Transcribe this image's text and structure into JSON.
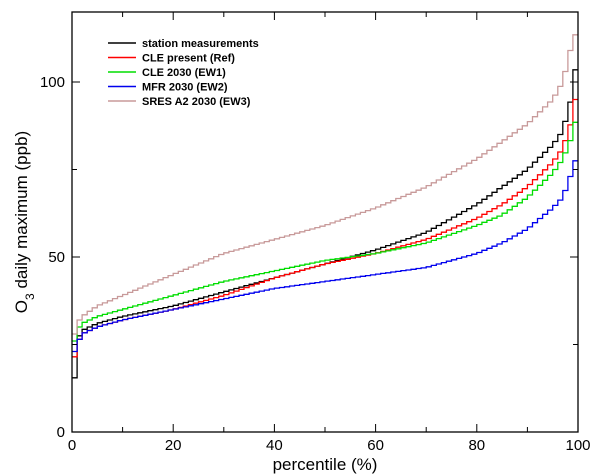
{
  "chart_data": {
    "type": "line",
    "title": "",
    "xlabel": "percentile (%)",
    "ylabel_main": "O",
    "ylabel_sub": "3",
    "ylabel_rest": " daily maximum (ppb)",
    "xlim": [
      0,
      100
    ],
    "ylim": [
      0,
      120
    ],
    "xticks": [
      0,
      20,
      40,
      60,
      80,
      100
    ],
    "yticks": [
      0,
      50,
      100
    ],
    "grid": false,
    "legend_position": "top-left",
    "step": true,
    "series": [
      {
        "name": "station measurements",
        "color": "#000000",
        "x": [
          0,
          1,
          2,
          5,
          10,
          20,
          30,
          40,
          50,
          60,
          70,
          80,
          85,
          90,
          95,
          97,
          99,
          100
        ],
        "y": [
          5,
          26,
          29,
          31,
          33,
          36,
          40,
          44,
          48,
          52,
          57,
          65,
          70,
          75,
          82,
          86,
          97,
          110
        ]
      },
      {
        "name": "CLE present (Ref)",
        "color": "#ff0000",
        "x": [
          0,
          1,
          2,
          5,
          10,
          20,
          30,
          40,
          50,
          60,
          70,
          80,
          85,
          90,
          95,
          97,
          99,
          100
        ],
        "y": [
          18,
          25,
          28,
          30,
          32,
          35,
          39,
          44,
          48,
          51,
          55,
          61,
          65,
          70,
          77,
          81,
          90,
          100
        ]
      },
      {
        "name": "CLE 2030 (EW1)",
        "color": "#00dd00",
        "x": [
          0,
          1,
          2,
          5,
          10,
          20,
          30,
          40,
          50,
          60,
          70,
          80,
          85,
          90,
          95,
          97,
          99,
          100
        ],
        "y": [
          23,
          29,
          31,
          33,
          35,
          39,
          43,
          46,
          49,
          51,
          54,
          59,
          62,
          67,
          74,
          78,
          85,
          92
        ]
      },
      {
        "name": "MFR 2030 (EW2)",
        "color": "#0000ee",
        "x": [
          0,
          1,
          2,
          5,
          10,
          20,
          30,
          40,
          50,
          60,
          70,
          80,
          85,
          90,
          95,
          97,
          99,
          100
        ],
        "y": [
          21,
          25,
          28,
          30,
          32,
          35,
          38,
          41,
          43,
          45,
          47,
          51,
          54,
          58,
          64,
          67,
          75,
          80
        ]
      },
      {
        "name": "SRES A2 2030 (EW3)",
        "color": "#c89a9a",
        "x": [
          0,
          1,
          2,
          5,
          10,
          20,
          30,
          40,
          50,
          60,
          70,
          80,
          85,
          90,
          95,
          97,
          99,
          100
        ],
        "y": [
          25,
          31,
          33,
          36,
          39,
          45,
          51,
          55,
          59,
          64,
          70,
          78,
          83,
          88,
          95,
          100,
          112,
          115
        ]
      }
    ]
  }
}
